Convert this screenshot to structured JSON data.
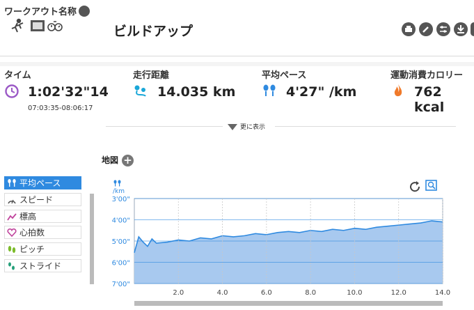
{
  "header": {
    "workout_name_label": "ワークアウト名称",
    "workout_title": "ビルドアップ",
    "icons": [
      "running-person-icon",
      "film-icon",
      "stopwatch-icon"
    ],
    "tools": [
      "print-icon",
      "edit-icon",
      "settings-icon",
      "download-icon",
      "delete-icon"
    ]
  },
  "stats": {
    "time": {
      "label": "タイム",
      "value": "1:02'32\"14",
      "range": "07:03:35-08:06:17",
      "icon": "clock-icon",
      "color": "#9b59c6"
    },
    "distance": {
      "label": "走行距離",
      "value": "14.035 km",
      "icon": "route-icon",
      "color": "#1aa7d8"
    },
    "pace": {
      "label": "平均ペース",
      "value": "4'27\" /km",
      "icon": "footprints-icon",
      "color": "#2f8ae0"
    },
    "calories": {
      "label": "運動消費カロリー",
      "value": "762 kcal",
      "icon": "flame-icon",
      "color": "#f07a2a"
    }
  },
  "more_label": "更に表示",
  "map_label": "地図",
  "metrics_menu": [
    {
      "label": "平均ペース",
      "icon": "footprints-icon",
      "active": true
    },
    {
      "label": "スピード",
      "icon": "speedometer-icon",
      "active": false
    },
    {
      "label": "標高",
      "icon": "elevation-icon",
      "active": false
    },
    {
      "label": "心拍数",
      "icon": "heart-icon",
      "active": false
    },
    {
      "label": "ピッチ",
      "icon": "cadence-icon",
      "active": false
    },
    {
      "label": "ストライド",
      "icon": "stride-icon",
      "active": false
    }
  ],
  "chart_data": {
    "type": "area",
    "ylabel": "/km",
    "y_ticks": [
      "3'00\"",
      "4'00\"",
      "5'00\"",
      "6'00\"",
      "7'00\""
    ],
    "y_tick_values": [
      3,
      4,
      5,
      6,
      7
    ],
    "x_ticks": [
      "2.0",
      "4.0",
      "6.0",
      "8.0",
      "10.0",
      "12.0",
      "14.0"
    ],
    "x_tick_values": [
      2,
      4,
      6,
      8,
      10,
      12,
      14
    ],
    "xlim": [
      0,
      14
    ],
    "ylim": [
      3,
      7
    ],
    "y_inverted": true,
    "grid": true,
    "series": [
      {
        "x": [
          0.0,
          0.2,
          0.4,
          0.6,
          0.8,
          1.0,
          1.5,
          2.0,
          2.5,
          3.0,
          3.5,
          4.0,
          4.5,
          5.0,
          5.5,
          6.0,
          6.5,
          7.0,
          7.5,
          8.0,
          8.5,
          9.0,
          9.5,
          10.0,
          10.5,
          11.0,
          11.5,
          12.0,
          12.5,
          13.0,
          13.5,
          14.0
        ],
        "values": [
          5.55,
          4.8,
          5.05,
          5.25,
          4.9,
          5.1,
          5.05,
          4.95,
          5.0,
          4.85,
          4.9,
          4.75,
          4.8,
          4.75,
          4.65,
          4.7,
          4.6,
          4.55,
          4.6,
          4.5,
          4.55,
          4.45,
          4.5,
          4.4,
          4.45,
          4.35,
          4.3,
          4.25,
          4.2,
          4.15,
          4.05,
          4.1
        ]
      }
    ],
    "line_color": "#2f8ae0",
    "fill_color": "#a8c9ef"
  }
}
